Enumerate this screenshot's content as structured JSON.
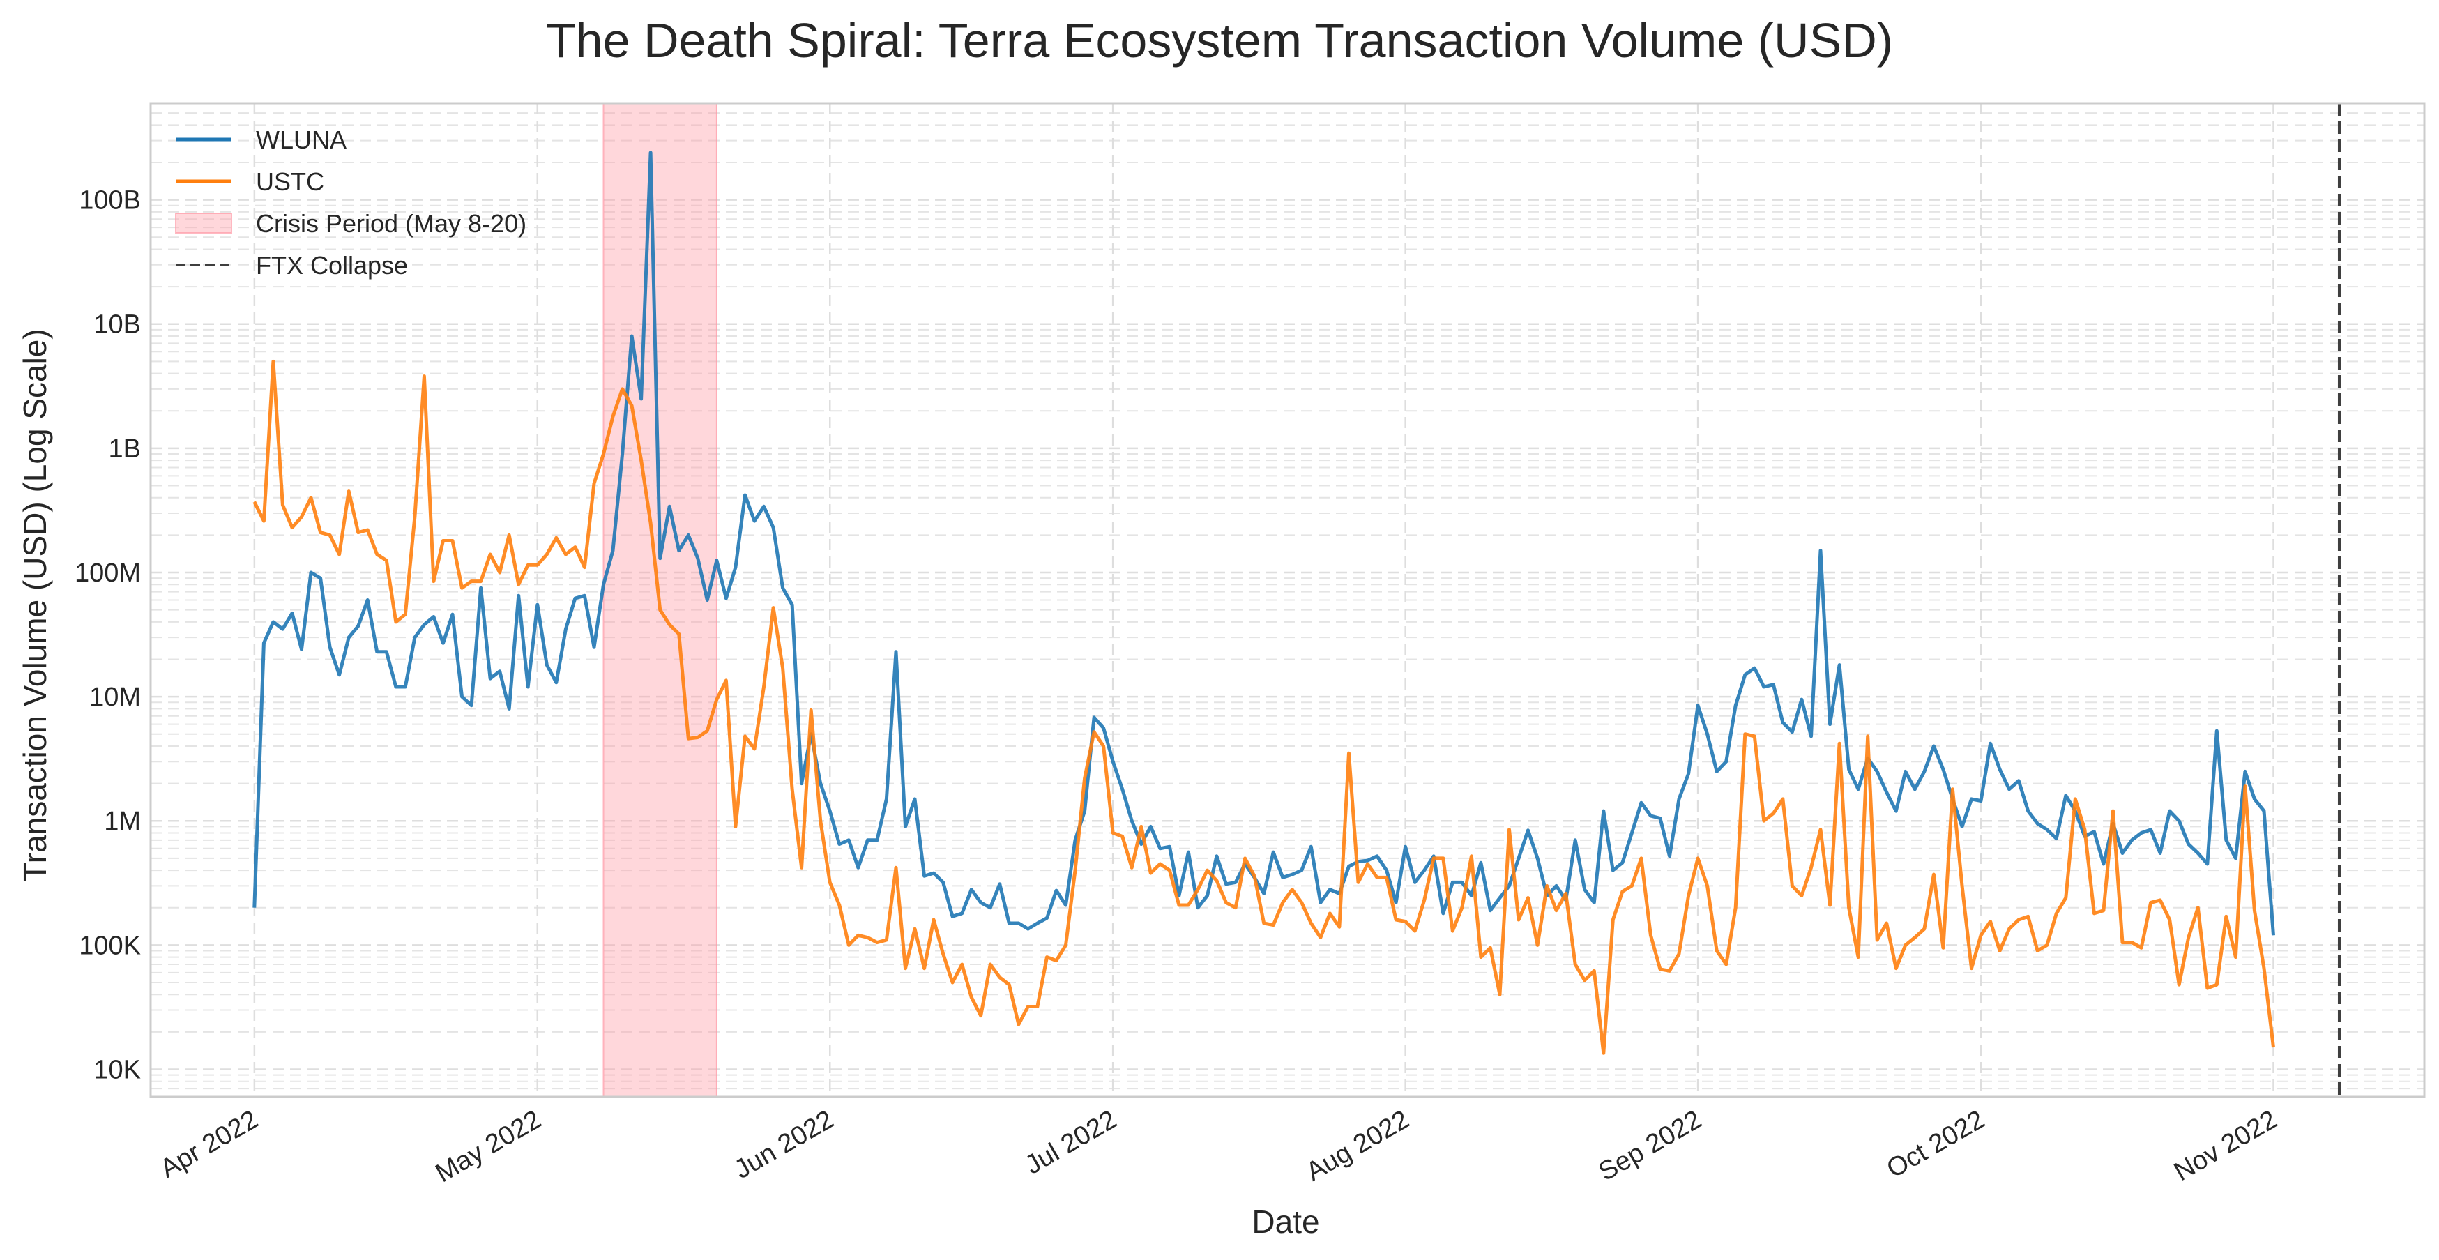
{
  "chart_data": {
    "type": "line",
    "title": "The Death Spiral: Terra Ecosystem Transaction Volume (USD)",
    "xlabel": "Date",
    "ylabel": "Transaction Volume (USD) (Log Scale)",
    "yscale": "log",
    "ylim": [
      6000,
      600000000000
    ],
    "xlim": [
      "2022-03-21",
      "2022-11-17"
    ],
    "xticks": [
      "2022-04-01",
      "2022-05-01",
      "2022-06-01",
      "2022-07-01",
      "2022-08-01",
      "2022-09-01",
      "2022-10-01",
      "2022-11-01"
    ],
    "xtick_labels": [
      "Apr 2022",
      "May 2022",
      "Jun 2022",
      "Jul 2022",
      "Aug 2022",
      "Sep 2022",
      "Oct 2022",
      "Nov 2022"
    ],
    "yticks": [
      10000,
      100000,
      1000000,
      10000000,
      100000000,
      1000000000,
      10000000000,
      100000000000
    ],
    "ytick_labels": [
      "10K",
      "100K",
      "1M",
      "10M",
      "100M",
      "1B",
      "10B",
      "100B"
    ],
    "grid": true,
    "legend_position": "top-left",
    "start_date": "2022-04-01",
    "series": [
      {
        "name": "WLUNA",
        "color": "#1f77b4",
        "values": [
          200000,
          27000000,
          40000000,
          35000000,
          47000000,
          24000000,
          100000000,
          90000000,
          25000000,
          15000000,
          30000000,
          37000000,
          60000000,
          23000000,
          23000000,
          12000000,
          12000000,
          30000000,
          38000000,
          44000000,
          27000000,
          46000000,
          10000000,
          8500000,
          75000000,
          14000000,
          16000000,
          8000000,
          65000000,
          12000000,
          55000000,
          18000000,
          13000000,
          35000000,
          62000000,
          65000000,
          25000000,
          80000000,
          150000000,
          900000000,
          8000000000,
          2500000000,
          240000000000,
          130000000,
          340000000,
          150000000,
          200000000,
          130000000,
          60000000,
          125000000,
          62000000,
          110000000,
          420000000,
          260000000,
          340000000,
          230000000,
          75000000,
          55000000,
          2000000,
          5000000,
          2000000,
          1200000,
          650000,
          700000,
          420000,
          700000,
          700000,
          1500000,
          23000000,
          900000,
          1500000,
          360000,
          380000,
          320000,
          170000,
          180000,
          280000,
          220000,
          200000,
          310000,
          150000,
          150000,
          135000,
          150000,
          165000,
          275000,
          210000,
          700000,
          1200000,
          6800000,
          5600000,
          3000000,
          1800000,
          1000000,
          650000,
          900000,
          600000,
          620000,
          250000,
          560000,
          200000,
          250000,
          520000,
          310000,
          320000,
          450000,
          350000,
          260000,
          560000,
          350000,
          370000,
          400000,
          620000,
          220000,
          280000,
          260000,
          430000,
          470000,
          480000,
          520000,
          400000,
          220000,
          620000,
          320000,
          400000,
          520000,
          180000,
          320000,
          320000,
          250000,
          460000,
          190000,
          240000,
          300000,
          500000,
          840000,
          500000,
          250000,
          300000,
          230000,
          700000,
          280000,
          220000,
          1200000,
          400000,
          460000,
          800000,
          1400000,
          1100000,
          1050000,
          520000,
          1500000,
          2400000,
          8500000,
          5000000,
          2500000,
          3000000,
          8500000,
          15000000,
          17000000,
          12000000,
          12500000,
          6200000,
          5200000,
          9500000,
          4800000,
          150000000,
          6000000,
          18000000,
          2600000,
          1800000,
          3200000,
          2500000,
          1700000,
          1200000,
          2500000,
          1800000,
          2500000,
          4000000,
          2600000,
          1500000,
          900000,
          1500000,
          1450000,
          4200000,
          2600000,
          1800000,
          2100000,
          1200000,
          950000,
          850000,
          720000,
          1600000,
          1200000,
          750000,
          820000,
          450000,
          950000,
          550000,
          700000,
          800000,
          850000,
          550000,
          1200000,
          1000000,
          650000,
          550000,
          450000,
          5300000,
          700000,
          500000,
          2500000,
          1500000,
          1200000,
          120000
        ]
      },
      {
        "name": "USTC",
        "color": "#ff7f0e",
        "values": [
          370000000,
          260000000,
          5000000000,
          350000000,
          230000000,
          280000000,
          400000000,
          210000000,
          200000000,
          140000000,
          450000000,
          210000000,
          220000000,
          140000000,
          125000000,
          40000000,
          46000000,
          280000000,
          3800000000,
          85000000,
          180000000,
          180000000,
          75000000,
          85000000,
          85000000,
          140000000,
          100000000,
          200000000,
          80000000,
          115000000,
          115000000,
          140000000,
          190000000,
          140000000,
          160000000,
          110000000,
          520000000,
          900000000,
          1800000000,
          3000000000,
          2200000000,
          800000000,
          250000000,
          50000000,
          38000000,
          32000000,
          4600000,
          4700000,
          5300000,
          9500000,
          13500000,
          900000,
          4800000,
          3800000,
          12000000,
          52000000,
          17000000,
          1800000,
          420000,
          7800000,
          1000000,
          320000,
          210000,
          100000,
          120000,
          115000,
          105000,
          110000,
          420000,
          65000,
          135000,
          65000,
          160000,
          85000,
          50000,
          70000,
          38000,
          27000,
          70000,
          55000,
          48000,
          23000,
          32000,
          32000,
          80000,
          75000,
          100000,
          400000,
          2200000,
          5200000,
          4000000,
          800000,
          750000,
          420000,
          900000,
          380000,
          450000,
          400000,
          210000,
          210000,
          280000,
          400000,
          330000,
          220000,
          200000,
          500000,
          360000,
          150000,
          145000,
          220000,
          280000,
          220000,
          150000,
          115000,
          180000,
          140000,
          3500000,
          320000,
          450000,
          350000,
          350000,
          160000,
          155000,
          130000,
          230000,
          500000,
          500000,
          130000,
          200000,
          520000,
          80000,
          95000,
          40000,
          850000,
          160000,
          240000,
          100000,
          300000,
          190000,
          260000,
          70000,
          52000,
          62000,
          13500,
          160000,
          270000,
          300000,
          500000,
          120000,
          64000,
          62000,
          85000,
          250000,
          500000,
          300000,
          90000,
          70000,
          200000,
          5000000,
          4800000,
          1000000,
          1150000,
          1500000,
          300000,
          250000,
          420000,
          850000,
          210000,
          4200000,
          200000,
          80000,
          4800000,
          110000,
          150000,
          65000,
          100000,
          115000,
          135000,
          370000,
          95000,
          1800000,
          300000,
          65000,
          120000,
          155000,
          90000,
          135000,
          160000,
          170000,
          90000,
          100000,
          180000,
          240000,
          1500000,
          850000,
          180000,
          190000,
          1200000,
          105000,
          105000,
          95000,
          220000,
          230000,
          160000,
          48000,
          115000,
          200000,
          45000,
          48000,
          170000,
          80000,
          1900000,
          190000,
          65000,
          15000
        ]
      }
    ],
    "crisis_band": {
      "start": "2022-05-08",
      "end": "2022-05-20",
      "color": "#ff9aa6"
    },
    "ftx_line": {
      "date": "2022-11-08",
      "color": "#3f3f3f"
    },
    "legend": [
      "WLUNA",
      "USTC",
      "Crisis Period (May 8-20)",
      "FTX Collapse"
    ]
  }
}
